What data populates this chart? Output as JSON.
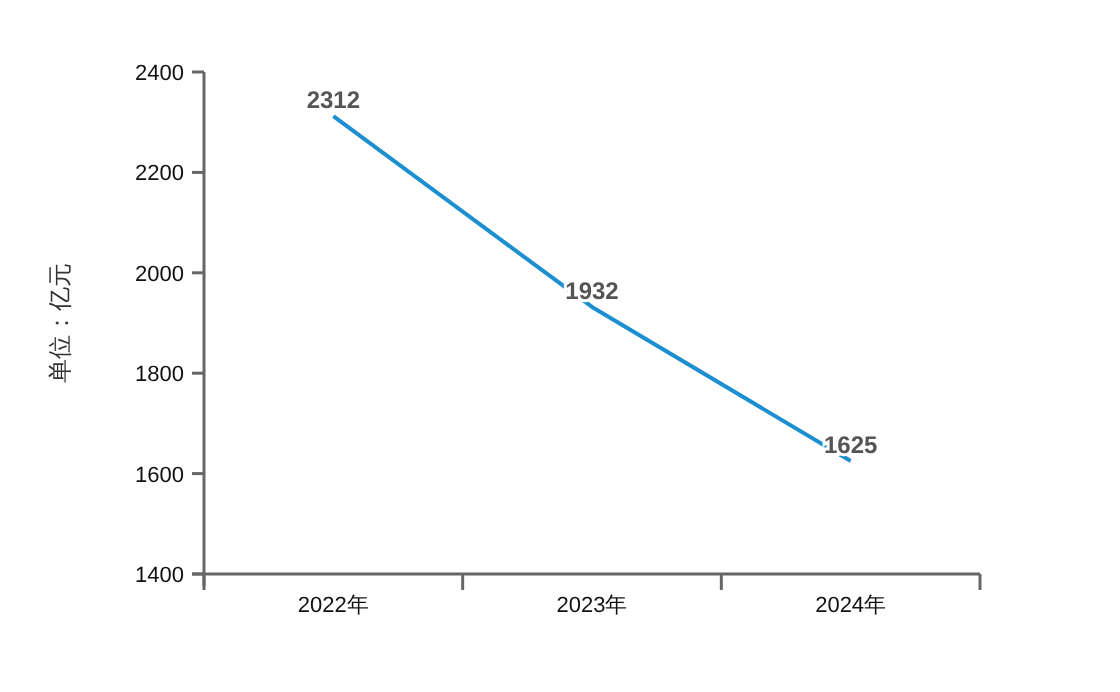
{
  "chart_data": {
    "type": "line",
    "ylabel": "单位：亿元",
    "categories": [
      "2022年",
      "2023年",
      "2024年"
    ],
    "series": [
      {
        "color": "#1b8fcf",
        "values": [
          2312,
          1932,
          1625
        ]
      }
    ],
    "ylim": [
      1400,
      2400
    ],
    "yticks": [
      1400,
      1600,
      1800,
      2000,
      2200,
      2400
    ],
    "data_labels": true,
    "grid": false,
    "marker": "none",
    "line_style": "solid"
  }
}
